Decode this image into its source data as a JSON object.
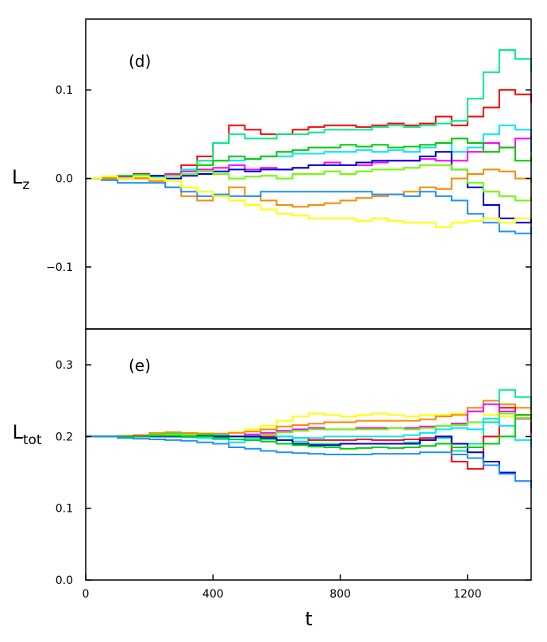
{
  "chart_data": [
    {
      "type": "line",
      "panel_label": "(d)",
      "ylabel": "L",
      "ylabel_sub": "z",
      "xlim": [
        0,
        1400
      ],
      "ylim": [
        -0.17,
        0.18
      ],
      "yticks": [
        -0.1,
        0.0,
        0.1
      ],
      "ytick_labels": [
        "−0.1",
        "0.0",
        "0.1"
      ],
      "x": [
        0,
        50,
        100,
        150,
        200,
        250,
        300,
        350,
        400,
        450,
        500,
        550,
        600,
        650,
        700,
        750,
        800,
        850,
        900,
        950,
        1000,
        1050,
        1100,
        1150,
        1200,
        1250,
        1300,
        1350,
        1400
      ],
      "series": [
        {
          "name": "red",
          "color": "#ff0000",
          "values": [
            0.0,
            0.002,
            0.0,
            0.005,
            0.003,
            0.005,
            0.015,
            0.025,
            0.04,
            0.06,
            0.055,
            0.05,
            0.05,
            0.055,
            0.058,
            0.06,
            0.06,
            0.058,
            0.06,
            0.062,
            0.06,
            0.062,
            0.07,
            0.06,
            0.07,
            0.08,
            0.1,
            0.095,
            0.085
          ]
        },
        {
          "name": "spring-green",
          "color": "#00ee88",
          "values": [
            0.0,
            0.002,
            0.0,
            0.004,
            0.003,
            0.005,
            0.01,
            0.02,
            0.04,
            0.05,
            0.045,
            0.045,
            0.05,
            0.05,
            0.052,
            0.055,
            0.055,
            0.055,
            0.058,
            0.06,
            0.058,
            0.06,
            0.062,
            0.065,
            0.09,
            0.12,
            0.145,
            0.135,
            0.12
          ]
        },
        {
          "name": "cyan",
          "color": "#00e5ff",
          "values": [
            0.0,
            0.0,
            0.002,
            0.003,
            0.002,
            0.005,
            0.01,
            0.015,
            0.02,
            0.02,
            0.022,
            0.025,
            0.025,
            0.028,
            0.028,
            0.03,
            0.03,
            0.032,
            0.03,
            0.032,
            0.03,
            0.035,
            0.04,
            0.03,
            0.035,
            0.05,
            0.06,
            0.055,
            0.03
          ]
        },
        {
          "name": "magenta",
          "color": "#ff00ff",
          "values": [
            0.0,
            0.0,
            0.002,
            0.002,
            0.0,
            0.005,
            0.008,
            0.01,
            0.012,
            0.015,
            0.01,
            0.012,
            0.01,
            0.012,
            0.015,
            0.018,
            0.015,
            0.015,
            0.018,
            0.02,
            0.02,
            0.022,
            0.02,
            0.02,
            0.03,
            0.04,
            0.035,
            0.045,
            0.048
          ]
        },
        {
          "name": "green",
          "color": "#00cc00",
          "values": [
            0.0,
            0.0,
            0.003,
            0.002,
            0.0,
            0.003,
            0.005,
            0.015,
            0.02,
            0.025,
            0.022,
            0.025,
            0.03,
            0.032,
            0.035,
            0.035,
            0.038,
            0.036,
            0.038,
            0.035,
            0.036,
            0.038,
            0.04,
            0.045,
            0.04,
            0.03,
            0.035,
            0.02,
            0.025
          ]
        },
        {
          "name": "blue",
          "color": "#0000dd",
          "values": [
            0.0,
            0.0,
            0.0,
            0.002,
            0.003,
            0.0,
            0.003,
            0.005,
            0.008,
            0.01,
            0.008,
            0.01,
            0.01,
            0.012,
            0.015,
            0.015,
            0.015,
            0.018,
            0.02,
            0.02,
            0.02,
            0.025,
            0.03,
            0.01,
            -0.01,
            -0.03,
            -0.045,
            -0.05,
            -0.04
          ]
        },
        {
          "name": "chartreuse",
          "color": "#66ff00",
          "values": [
            0.0,
            0.002,
            0.0,
            0.003,
            0.0,
            0.003,
            0.005,
            0.008,
            0.005,
            0.0,
            0.002,
            0.003,
            0.0,
            0.005,
            0.005,
            0.008,
            0.005,
            0.008,
            0.01,
            0.01,
            0.012,
            0.015,
            0.015,
            0.01,
            -0.005,
            -0.015,
            -0.02,
            -0.025,
            -0.02
          ]
        },
        {
          "name": "orange",
          "color": "#ff8800",
          "values": [
            0.0,
            0.0,
            0.0,
            0.0,
            -0.003,
            -0.01,
            -0.02,
            -0.025,
            -0.02,
            -0.01,
            -0.02,
            -0.025,
            -0.03,
            -0.032,
            -0.03,
            -0.028,
            -0.025,
            -0.022,
            -0.02,
            -0.018,
            -0.015,
            -0.01,
            -0.012,
            0.0,
            0.005,
            0.01,
            0.008,
            0.0,
            -0.005
          ]
        },
        {
          "name": "sky-blue",
          "color": "#1e90ff",
          "values": [
            0.0,
            -0.002,
            -0.005,
            -0.005,
            -0.005,
            -0.01,
            -0.015,
            -0.02,
            -0.018,
            -0.02,
            -0.02,
            -0.015,
            -0.015,
            -0.015,
            -0.015,
            -0.015,
            -0.015,
            -0.015,
            -0.018,
            -0.018,
            -0.02,
            -0.015,
            -0.02,
            -0.025,
            -0.04,
            -0.05,
            -0.06,
            -0.062,
            -0.055
          ]
        },
        {
          "name": "yellow",
          "color": "#ffff00",
          "values": [
            0.0,
            0.002,
            0.0,
            0.002,
            0.0,
            -0.003,
            -0.01,
            -0.015,
            -0.02,
            -0.025,
            -0.03,
            -0.035,
            -0.04,
            -0.042,
            -0.045,
            -0.045,
            -0.045,
            -0.048,
            -0.045,
            -0.048,
            -0.05,
            -0.05,
            -0.055,
            -0.05,
            -0.048,
            -0.045,
            -0.05,
            -0.045,
            -0.04
          ]
        }
      ]
    },
    {
      "type": "line",
      "panel_label": "(e)",
      "ylabel": "L",
      "ylabel_sub": "tot",
      "xlabel": "t",
      "xlim": [
        0,
        1400
      ],
      "ylim": [
        0.0,
        0.35
      ],
      "yticks": [
        0.0,
        0.1,
        0.2,
        0.3
      ],
      "ytick_labels": [
        "0.0",
        "0.1",
        "0.2",
        "0.3"
      ],
      "xticks": [
        0,
        400,
        800,
        1200
      ],
      "xtick_labels": [
        "0",
        "400",
        "800",
        "1200"
      ],
      "x": [
        0,
        50,
        100,
        150,
        200,
        250,
        300,
        350,
        400,
        450,
        500,
        550,
        600,
        650,
        700,
        750,
        800,
        850,
        900,
        950,
        1000,
        1050,
        1100,
        1150,
        1200,
        1250,
        1300,
        1350,
        1400
      ],
      "series": [
        {
          "name": "yellow",
          "color": "#ffff00",
          "values": [
            0.2,
            0.2,
            0.2,
            0.202,
            0.204,
            0.205,
            0.205,
            0.205,
            0.204,
            0.206,
            0.21,
            0.215,
            0.222,
            0.228,
            0.232,
            0.23,
            0.228,
            0.23,
            0.232,
            0.23,
            0.228,
            0.23,
            0.23,
            0.232,
            0.235,
            0.23,
            0.228,
            0.225,
            0.225
          ]
        },
        {
          "name": "orange",
          "color": "#ff8800",
          "values": [
            0.2,
            0.2,
            0.201,
            0.202,
            0.205,
            0.206,
            0.205,
            0.204,
            0.204,
            0.205,
            0.207,
            0.21,
            0.214,
            0.216,
            0.218,
            0.22,
            0.22,
            0.222,
            0.222,
            0.222,
            0.222,
            0.224,
            0.228,
            0.23,
            0.24,
            0.25,
            0.245,
            0.24,
            0.235
          ]
        },
        {
          "name": "spring-green",
          "color": "#00ee88",
          "values": [
            0.2,
            0.2,
            0.2,
            0.2,
            0.203,
            0.204,
            0.203,
            0.203,
            0.202,
            0.2,
            0.198,
            0.196,
            0.195,
            0.193,
            0.19,
            0.19,
            0.19,
            0.19,
            0.19,
            0.19,
            0.192,
            0.195,
            0.198,
            0.18,
            0.19,
            0.22,
            0.265,
            0.255,
            0.24
          ]
        },
        {
          "name": "red",
          "color": "#ff0000",
          "values": [
            0.2,
            0.2,
            0.2,
            0.2,
            0.2,
            0.2,
            0.2,
            0.202,
            0.2,
            0.2,
            0.2,
            0.2,
            0.2,
            0.198,
            0.195,
            0.195,
            0.195,
            0.196,
            0.195,
            0.195,
            0.196,
            0.198,
            0.2,
            0.165,
            0.155,
            0.2,
            0.24,
            0.23,
            0.205
          ]
        },
        {
          "name": "magenta",
          "color": "#ff00ff",
          "values": [
            0.2,
            0.2,
            0.2,
            0.201,
            0.202,
            0.203,
            0.203,
            0.202,
            0.2,
            0.2,
            0.203,
            0.205,
            0.208,
            0.21,
            0.212,
            0.21,
            0.21,
            0.212,
            0.212,
            0.212,
            0.212,
            0.214,
            0.215,
            0.218,
            0.235,
            0.245,
            0.235,
            0.225,
            0.225
          ]
        },
        {
          "name": "chartreuse",
          "color": "#66ff00",
          "values": [
            0.2,
            0.2,
            0.2,
            0.2,
            0.202,
            0.203,
            0.203,
            0.202,
            0.2,
            0.2,
            0.2,
            0.203,
            0.206,
            0.208,
            0.21,
            0.21,
            0.21,
            0.21,
            0.21,
            0.212,
            0.21,
            0.212,
            0.215,
            0.216,
            0.22,
            0.225,
            0.232,
            0.226,
            0.22
          ]
        },
        {
          "name": "cyan",
          "color": "#00e5ff",
          "values": [
            0.2,
            0.2,
            0.2,
            0.2,
            0.2,
            0.2,
            0.199,
            0.198,
            0.196,
            0.192,
            0.195,
            0.198,
            0.2,
            0.198,
            0.198,
            0.2,
            0.2,
            0.2,
            0.2,
            0.2,
            0.202,
            0.205,
            0.21,
            0.212,
            0.21,
            0.225,
            0.215,
            0.195,
            0.185
          ]
        },
        {
          "name": "blue",
          "color": "#0000dd",
          "values": [
            0.2,
            0.2,
            0.2,
            0.2,
            0.2,
            0.2,
            0.2,
            0.201,
            0.2,
            0.2,
            0.2,
            0.198,
            0.195,
            0.19,
            0.188,
            0.188,
            0.19,
            0.19,
            0.19,
            0.19,
            0.19,
            0.195,
            0.2,
            0.19,
            0.178,
            0.165,
            0.15,
            0.138,
            0.13
          ]
        },
        {
          "name": "green",
          "color": "#00cc00",
          "values": [
            0.2,
            0.2,
            0.2,
            0.2,
            0.201,
            0.201,
            0.2,
            0.2,
            0.198,
            0.196,
            0.195,
            0.193,
            0.19,
            0.188,
            0.186,
            0.185,
            0.183,
            0.184,
            0.185,
            0.184,
            0.185,
            0.187,
            0.19,
            0.185,
            0.185,
            0.19,
            0.2,
            0.23,
            0.225
          ]
        },
        {
          "name": "sky-blue",
          "color": "#1e90ff",
          "values": [
            0.2,
            0.2,
            0.198,
            0.197,
            0.196,
            0.195,
            0.194,
            0.192,
            0.19,
            0.185,
            0.183,
            0.18,
            0.178,
            0.177,
            0.176,
            0.175,
            0.175,
            0.175,
            0.176,
            0.176,
            0.176,
            0.178,
            0.178,
            0.175,
            0.17,
            0.16,
            0.148,
            0.138,
            0.128
          ]
        }
      ]
    }
  ]
}
